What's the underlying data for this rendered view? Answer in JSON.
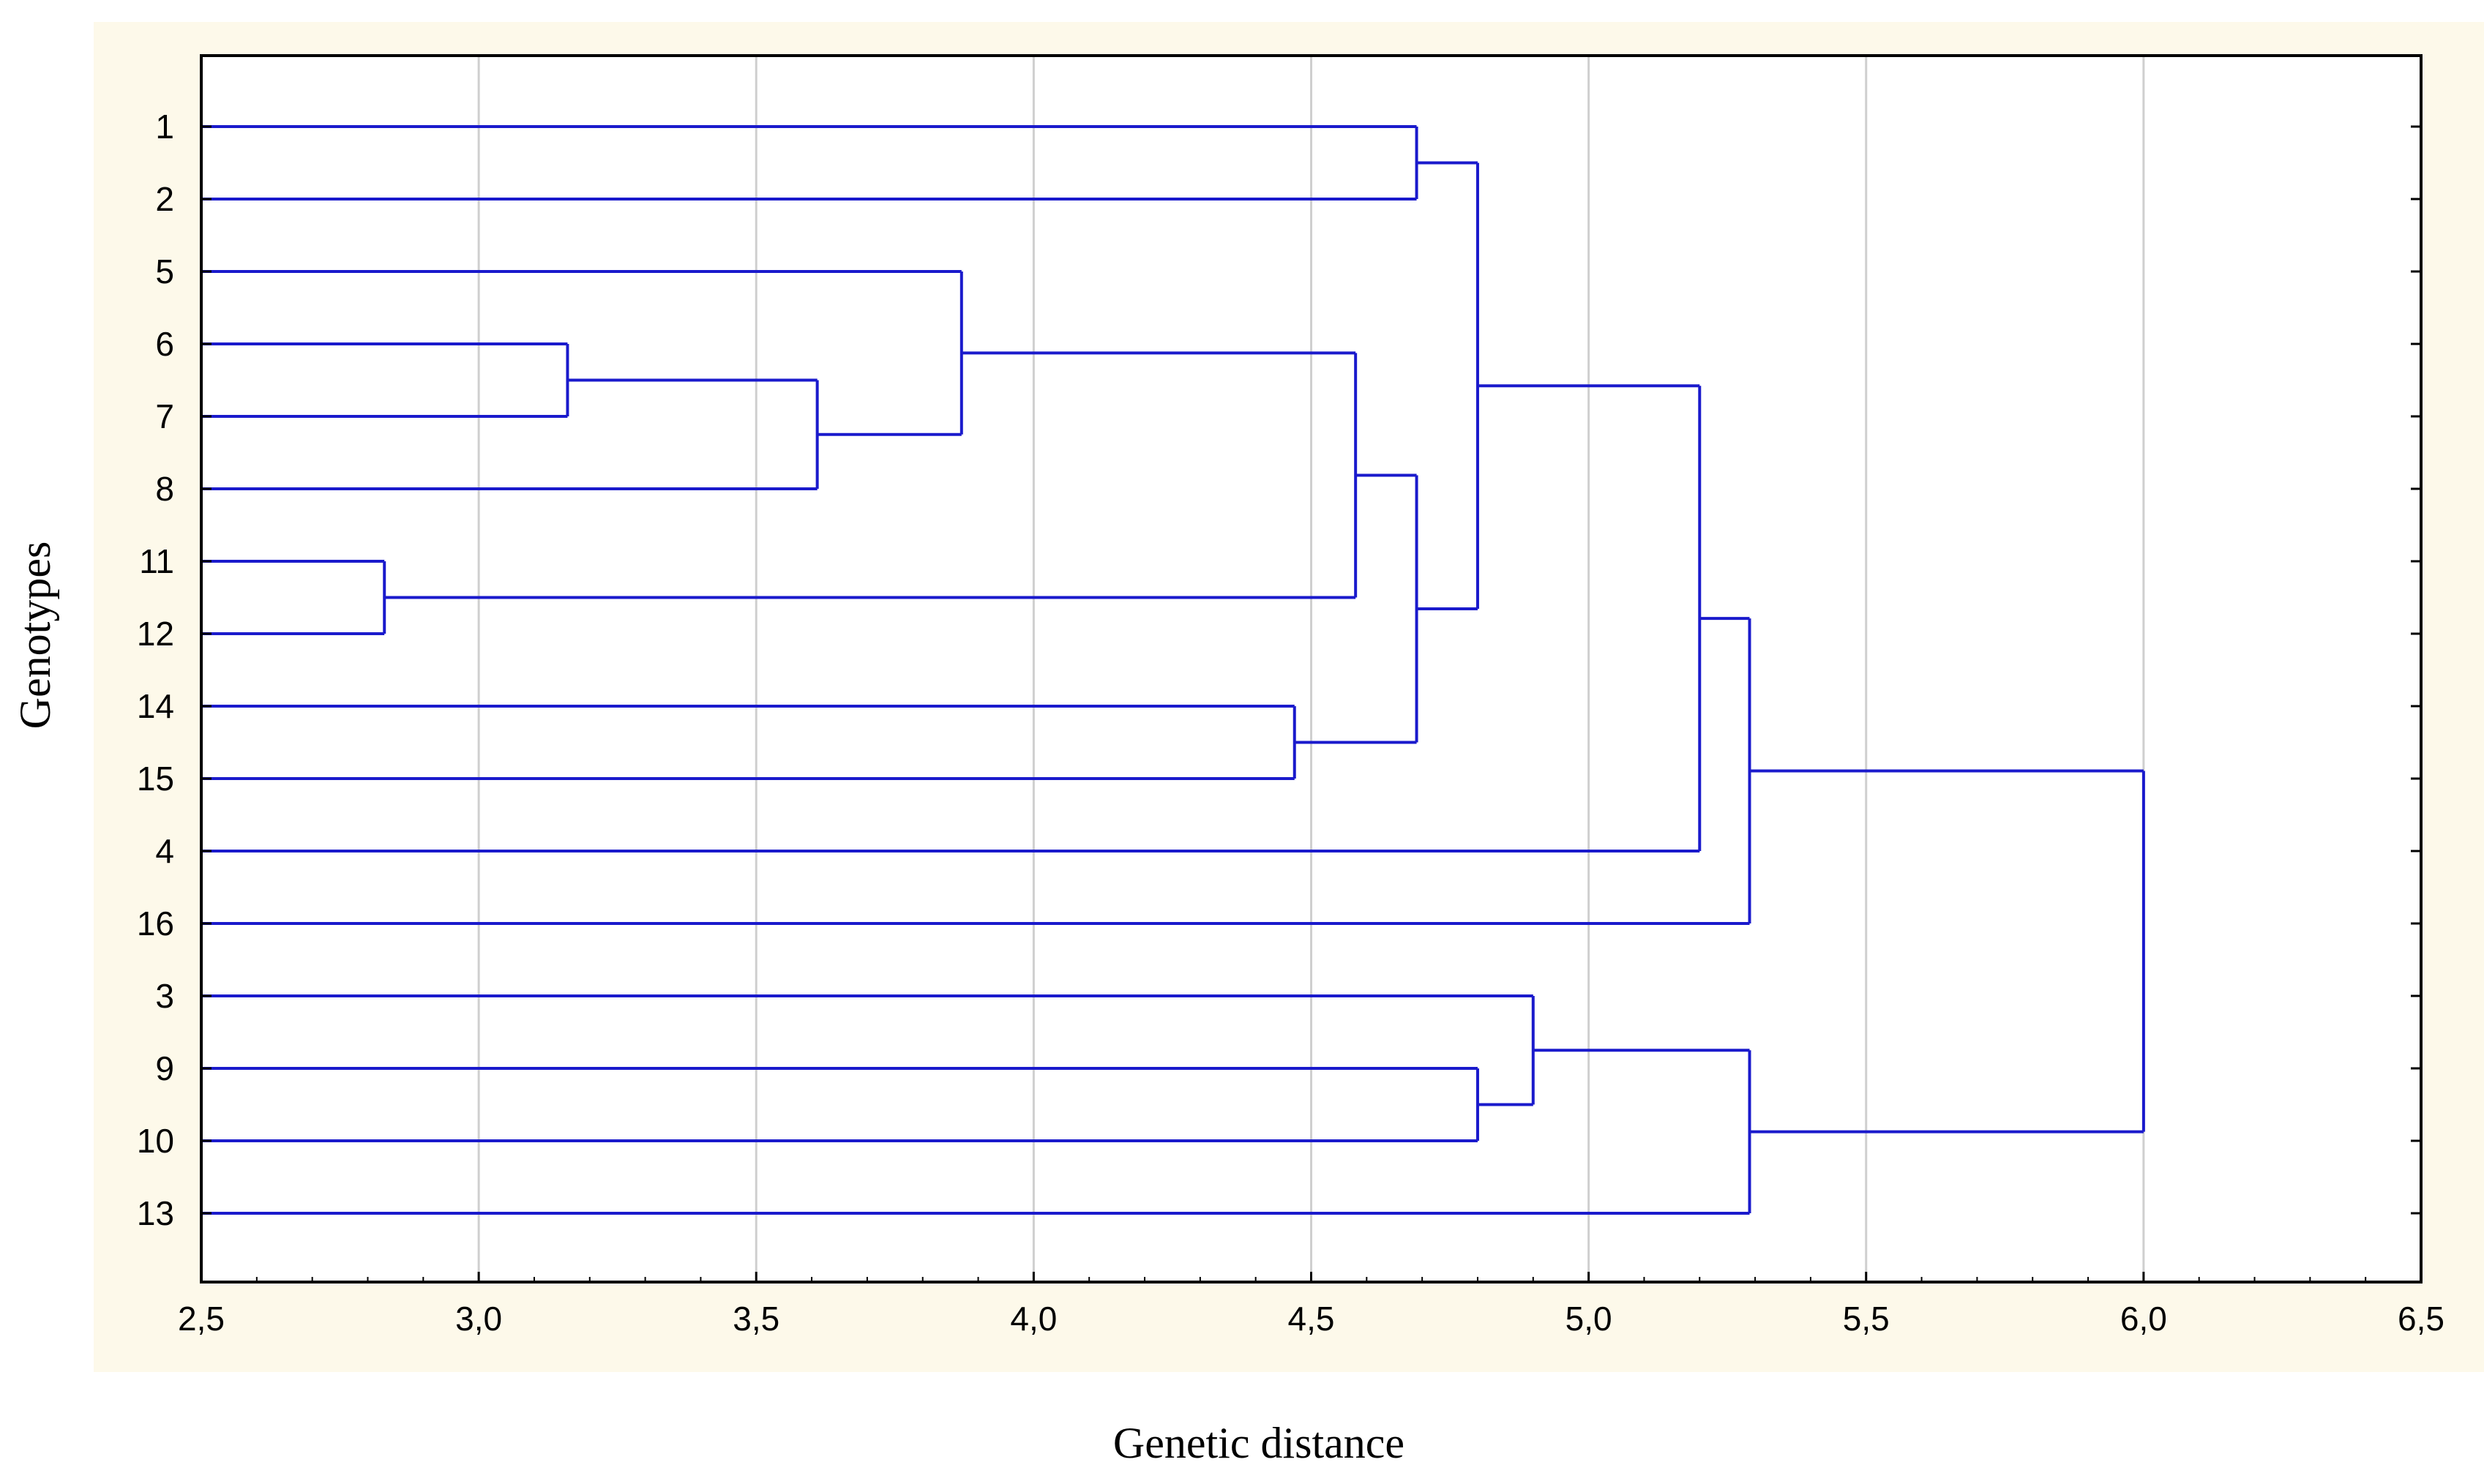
{
  "chart_data": {
    "type": "dendrogram",
    "title": "",
    "xlabel": "Genetic distance",
    "ylabel": "Genotypes",
    "xlim": [
      2.5,
      6.5
    ],
    "xticks": [
      {
        "value": 2.5,
        "label": "2,5"
      },
      {
        "value": 3.0,
        "label": "3,0"
      },
      {
        "value": 3.5,
        "label": "3,5"
      },
      {
        "value": 4.0,
        "label": "4,0"
      },
      {
        "value": 4.5,
        "label": "4,5"
      },
      {
        "value": 5.0,
        "label": "5,0"
      },
      {
        "value": 5.5,
        "label": "5,5"
      },
      {
        "value": 6.0,
        "label": "6,0"
      },
      {
        "value": 6.5,
        "label": "6,5"
      }
    ],
    "leaf_order": [
      "1",
      "2",
      "5",
      "6",
      "7",
      "8",
      "11",
      "12",
      "14",
      "15",
      "4",
      "16",
      "3",
      "9",
      "10",
      "13"
    ],
    "merges": [
      {
        "id": "m1",
        "left": "11",
        "right": "12",
        "height": 2.83
      },
      {
        "id": "m2",
        "left": "6",
        "right": "7",
        "height": 3.16
      },
      {
        "id": "m3",
        "left": "m2",
        "right": "8",
        "height": 3.61
      },
      {
        "id": "m4",
        "left": "5",
        "right": "m3",
        "height": 3.87
      },
      {
        "id": "m5",
        "left": "14",
        "right": "15",
        "height": 4.47
      },
      {
        "id": "m6",
        "left": "m4",
        "right": "m1",
        "height": 4.58
      },
      {
        "id": "m7",
        "left": "1",
        "right": "2",
        "height": 4.69
      },
      {
        "id": "m8",
        "left": "m6",
        "right": "m5",
        "height": 4.69
      },
      {
        "id": "m9",
        "left": "m7",
        "right": "m8",
        "height": 4.8
      },
      {
        "id": "m10",
        "left": "9",
        "right": "10",
        "height": 4.8
      },
      {
        "id": "m11",
        "left": "3",
        "right": "m10",
        "height": 4.9
      },
      {
        "id": "m12",
        "left": "m9",
        "right": "4",
        "height": 5.2
      },
      {
        "id": "m13",
        "left": "m12",
        "right": "16",
        "height": 5.29
      },
      {
        "id": "m14",
        "left": "m11",
        "right": "13",
        "height": 5.29
      },
      {
        "id": "m15",
        "left": "m13",
        "right": "m14",
        "height": 6.0
      }
    ],
    "grid": true,
    "line_color": "#1a1acc",
    "grid_color": "#cfcfcf",
    "plot_background": "#ffffff",
    "frame_background": "#fdf9ea"
  }
}
